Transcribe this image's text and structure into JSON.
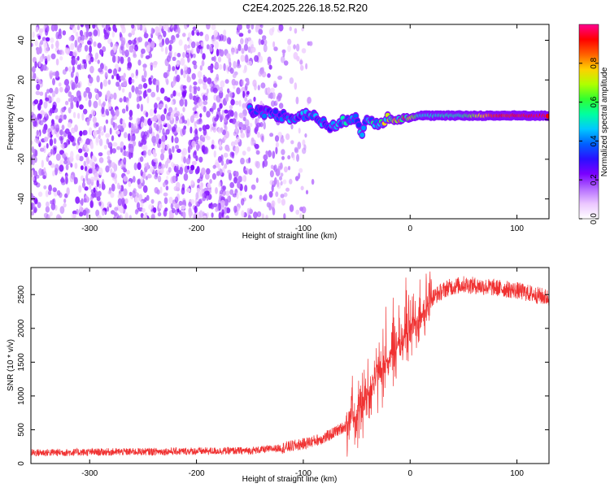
{
  "title": "C2E4.2025.226.18.52.R20",
  "colors": {
    "snr_line": "#f03232",
    "axis": "#000000",
    "colormap": [
      "#ffffff",
      "#ecc7ff",
      "#b46cff",
      "#7a00ff",
      "#2a10ff",
      "#0060ff",
      "#00c8ff",
      "#00ffa0",
      "#30ff30",
      "#b0ff00",
      "#ffd000",
      "#ff6000",
      "#ff0000",
      "#ff0090"
    ]
  },
  "chart_data": [
    {
      "type": "heatmap",
      "xlabel": "Height of straight line (km)",
      "ylabel": "Frequency (Hz)",
      "xlim": [
        -355,
        130
      ],
      "ylim": [
        -50,
        48
      ],
      "xticks": [
        -300,
        -200,
        -100,
        0,
        100
      ],
      "yticks": [
        -40,
        -20,
        0,
        20,
        40
      ],
      "grid": false,
      "colorbar": {
        "label": "Normalized spectral amplitude",
        "range": [
          0,
          1
        ],
        "ticks": [
          0.0,
          0.2,
          0.4,
          0.6,
          0.8
        ],
        "tick_labels": [
          "0.0",
          "0.2",
          "0.4",
          "0.6",
          "0.8"
        ]
      },
      "features": {
        "noise_region_x": [
          -355,
          -100
        ],
        "carrier_track": [
          {
            "x": -150,
            "y": 5
          },
          {
            "x": -130,
            "y": 3
          },
          {
            "x": -110,
            "y": 1
          },
          {
            "x": -95,
            "y": 3
          },
          {
            "x": -80,
            "y": -2
          },
          {
            "x": -70,
            "y": -4
          },
          {
            "x": -60,
            "y": 0
          },
          {
            "x": -50,
            "y": 2
          },
          {
            "x": -45,
            "y": -8
          },
          {
            "x": -40,
            "y": 0
          },
          {
            "x": -30,
            "y": -2
          },
          {
            "x": -20,
            "y": 1
          },
          {
            "x": -10,
            "y": 1
          },
          {
            "x": 0,
            "y": 1
          },
          {
            "x": 10,
            "y": 2
          },
          {
            "x": 50,
            "y": 2
          },
          {
            "x": 100,
            "y": 2
          },
          {
            "x": 130,
            "y": 2
          }
        ],
        "carrier_amplitude": [
          {
            "x": -150,
            "a": 0.35
          },
          {
            "x": -100,
            "a": 0.4
          },
          {
            "x": -60,
            "a": 0.45
          },
          {
            "x": -40,
            "a": 0.4
          },
          {
            "x": -20,
            "a": 0.7
          },
          {
            "x": 0,
            "a": 0.75
          },
          {
            "x": 10,
            "a": 0.5
          },
          {
            "x": 50,
            "a": 0.55
          },
          {
            "x": 80,
            "a": 0.9
          },
          {
            "x": 130,
            "a": 0.95
          }
        ]
      }
    },
    {
      "type": "line",
      "xlabel": "Height of straight line (km)",
      "ylabel": "SNR (10 * v/v)",
      "xlim": [
        -355,
        130
      ],
      "ylim": [
        0,
        2900
      ],
      "xticks": [
        -300,
        -200,
        -100,
        0,
        100
      ],
      "yticks": [
        0,
        500,
        1000,
        1500,
        2000,
        2500
      ],
      "grid": false,
      "series": [
        {
          "trend": [
            {
              "x": -355,
              "y": 160
            },
            {
              "x": -150,
              "y": 190
            },
            {
              "x": -120,
              "y": 230
            },
            {
              "x": -100,
              "y": 290
            },
            {
              "x": -80,
              "y": 380
            },
            {
              "x": -60,
              "y": 560
            },
            {
              "x": -45,
              "y": 850
            },
            {
              "x": -35,
              "y": 1200
            },
            {
              "x": -25,
              "y": 1450
            },
            {
              "x": -15,
              "y": 1650
            },
            {
              "x": -5,
              "y": 1900
            },
            {
              "x": 0,
              "y": 2000
            },
            {
              "x": 10,
              "y": 2200
            },
            {
              "x": 20,
              "y": 2450
            },
            {
              "x": 35,
              "y": 2600
            },
            {
              "x": 50,
              "y": 2650
            },
            {
              "x": 80,
              "y": 2600
            },
            {
              "x": 100,
              "y": 2560
            },
            {
              "x": 130,
              "y": 2450
            }
          ],
          "max_value": 2880
        }
      ]
    }
  ]
}
